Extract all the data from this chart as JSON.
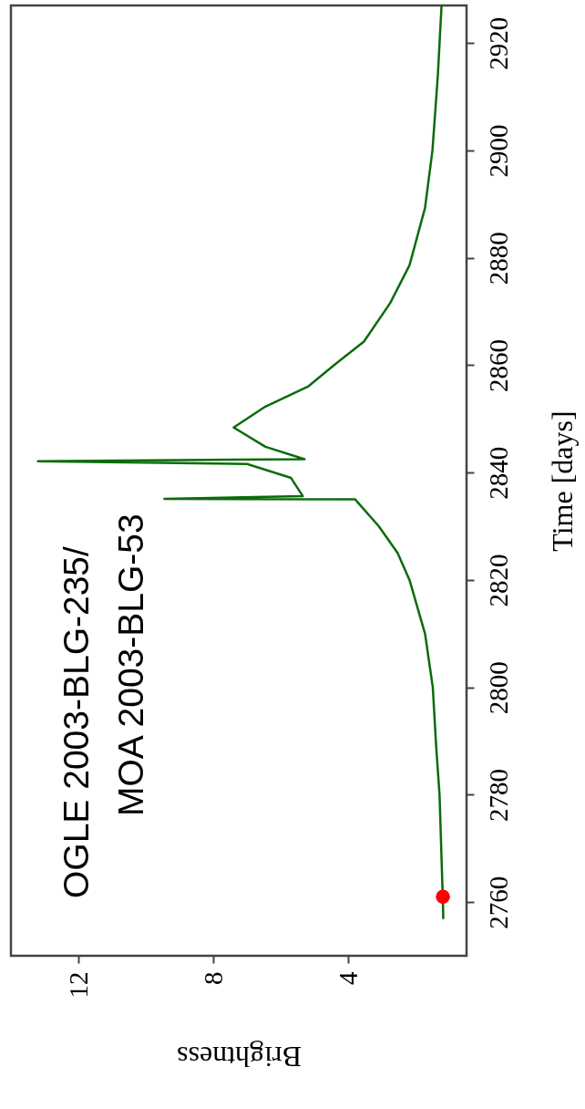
{
  "chart_data": {
    "type": "line",
    "xlabel": "Brightness",
    "ylabel": "Time [days]",
    "annotations": [
      "OGLE 2003-BLG-235/",
      "MOA 2003-BLG-53"
    ],
    "xlim": [
      14,
      0.5
    ],
    "ylim": [
      2750,
      2927
    ],
    "xticks": [
      12,
      8,
      4
    ],
    "yticks": [
      2760,
      2780,
      2800,
      2820,
      2840,
      2860,
      2880,
      2900,
      2920
    ],
    "grid": false,
    "series": [
      {
        "type": "line",
        "color": "#0b6b0b",
        "x": [
          1.19,
          1.2,
          1.3,
          1.4,
          1.5,
          1.73,
          2.19,
          2.54,
          3.1,
          3.8,
          9.45,
          5.35,
          5.7,
          7.0,
          13.2,
          5.3,
          6.46,
          7.4,
          6.46,
          5.2,
          4.43,
          3.54,
          2.76,
          2.19,
          1.73,
          1.51,
          1.35,
          1.24
        ],
        "values": [
          2757,
          2760,
          2780,
          2789,
          2800,
          2810,
          2820,
          2825,
          2830,
          2835,
          2835.1,
          2835.6,
          2839,
          2841.6,
          2842.1,
          2842.5,
          2844.8,
          2848.4,
          2852.3,
          2856,
          2860,
          2864.4,
          2871.6,
          2878.6,
          2889.3,
          2900,
          2914,
          2927
        ]
      },
      {
        "type": "scatter",
        "color": "#ff0000",
        "marker": "circle",
        "x": [
          1.2
        ],
        "values": [
          2761
        ]
      }
    ]
  }
}
